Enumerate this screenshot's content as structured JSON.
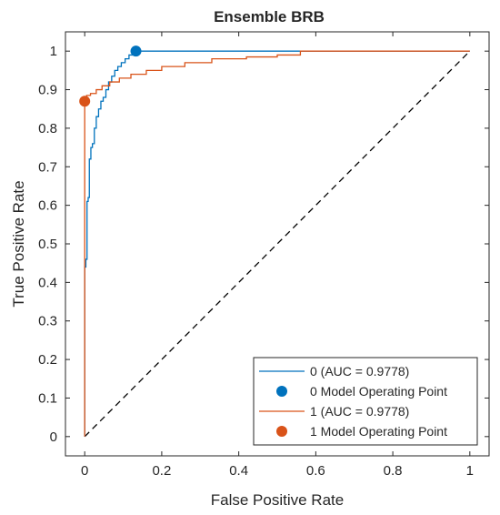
{
  "chart_data": {
    "type": "line",
    "title": "Ensemble BRB",
    "xlabel": "False Positive Rate",
    "ylabel": "True Positive Rate",
    "xlim": [
      -0.05,
      1.05
    ],
    "ylim": [
      -0.05,
      1.05
    ],
    "xticks": [
      0,
      0.2,
      0.4,
      0.6,
      0.8,
      1
    ],
    "xtick_labels": [
      "0",
      "0.2",
      "0.4",
      "0.6",
      "0.8",
      "1"
    ],
    "yticks": [
      0,
      0.1,
      0.2,
      0.3,
      0.4,
      0.5,
      0.6,
      0.7,
      0.8,
      0.9,
      1
    ],
    "ytick_labels": [
      "0",
      "0.1",
      "0.2",
      "0.3",
      "0.4",
      "0.5",
      "0.6",
      "0.7",
      "0.8",
      "0.9",
      "1"
    ],
    "grid": false,
    "legend_position": "bottom-right",
    "series": [
      {
        "name": "0 (AUC = 0.9778)",
        "kind": "line",
        "color": "#0072BD",
        "x": [
          0,
          0,
          0.003,
          0.003,
          0.006,
          0.006,
          0.009,
          0.009,
          0.012,
          0.012,
          0.016,
          0.016,
          0.02,
          0.02,
          0.025,
          0.025,
          0.03,
          0.03,
          0.036,
          0.036,
          0.042,
          0.042,
          0.048,
          0.048,
          0.055,
          0.055,
          0.062,
          0.062,
          0.07,
          0.07,
          0.078,
          0.078,
          0.086,
          0.086,
          0.095,
          0.095,
          0.105,
          0.105,
          0.115,
          0.115,
          0.125,
          0.125,
          0.133,
          0.133,
          1
        ],
        "y": [
          0,
          0.44,
          0.44,
          0.46,
          0.46,
          0.61,
          0.61,
          0.62,
          0.62,
          0.72,
          0.72,
          0.75,
          0.75,
          0.76,
          0.76,
          0.8,
          0.8,
          0.83,
          0.83,
          0.85,
          0.85,
          0.87,
          0.87,
          0.88,
          0.88,
          0.9,
          0.9,
          0.92,
          0.92,
          0.935,
          0.935,
          0.95,
          0.95,
          0.96,
          0.96,
          0.97,
          0.97,
          0.98,
          0.98,
          0.99,
          0.99,
          0.995,
          0.995,
          1,
          1
        ]
      },
      {
        "name": "0 Model Operating Point",
        "kind": "point",
        "color": "#0072BD",
        "x": [
          0.133
        ],
        "y": [
          1
        ]
      },
      {
        "name": "1 (AUC = 0.9778)",
        "kind": "line",
        "color": "#D95319",
        "x": [
          0,
          0,
          0.005,
          0.005,
          0.015,
          0.015,
          0.03,
          0.03,
          0.045,
          0.045,
          0.065,
          0.065,
          0.09,
          0.09,
          0.12,
          0.12,
          0.16,
          0.16,
          0.2,
          0.2,
          0.26,
          0.26,
          0.33,
          0.33,
          0.42,
          0.42,
          0.5,
          0.5,
          0.56,
          0.56,
          1
        ],
        "y": [
          0,
          0.88,
          0.88,
          0.885,
          0.885,
          0.89,
          0.89,
          0.9,
          0.9,
          0.91,
          0.91,
          0.92,
          0.92,
          0.93,
          0.93,
          0.94,
          0.94,
          0.95,
          0.95,
          0.96,
          0.96,
          0.97,
          0.97,
          0.98,
          0.98,
          0.985,
          0.985,
          0.99,
          0.99,
          1,
          1
        ]
      },
      {
        "name": "1 Model Operating Point",
        "kind": "point",
        "color": "#D95319",
        "x": [
          0
        ],
        "y": [
          0.87
        ]
      }
    ],
    "reference_line": {
      "x": [
        0,
        1
      ],
      "y": [
        0,
        1
      ],
      "style": "dashed",
      "color": "#000000"
    }
  }
}
